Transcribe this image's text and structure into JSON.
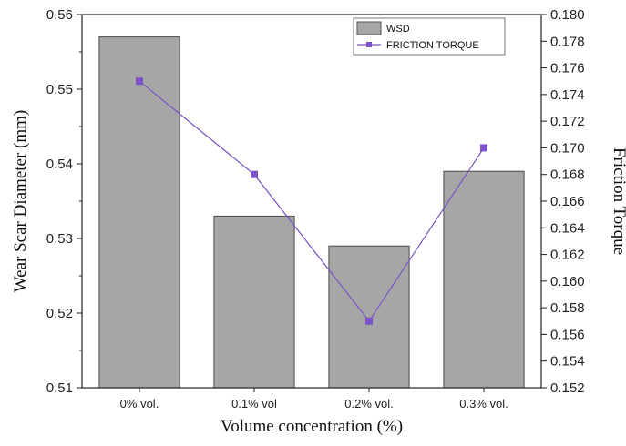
{
  "chart_data": {
    "type": "bar+line",
    "categories": [
      "0% vol.",
      "0.1% vol",
      "0.2% vol.",
      "0.3% vol."
    ],
    "series": [
      {
        "name": "WSD",
        "type": "bar",
        "axis": "left",
        "values": [
          0.557,
          0.533,
          0.529,
          0.539
        ],
        "color": "#a6a6a6"
      },
      {
        "name": "FRICTION TORQUE",
        "type": "line",
        "axis": "right",
        "values": [
          0.175,
          0.168,
          0.157,
          0.17
        ],
        "color": "#7b52c7"
      }
    ],
    "xlabel": "Volume concentration (%)",
    "ylabel_left": "Wear Scar Diameter (mm)",
    "ylabel_right": "Friction Torque",
    "ylim_left": [
      0.51,
      0.56
    ],
    "yticks_left": [
      "0.51",
      "0.52",
      "0.53",
      "0.54",
      "0.55",
      "0.56"
    ],
    "ylim_right": [
      0.152,
      0.18
    ],
    "yticks_right": [
      "0.152",
      "0.154",
      "0.156",
      "0.158",
      "0.160",
      "0.162",
      "0.164",
      "0.166",
      "0.168",
      "0.170",
      "0.172",
      "0.174",
      "0.176",
      "0.178",
      "0.180"
    ],
    "grid": false,
    "legend_position": "top-right"
  }
}
